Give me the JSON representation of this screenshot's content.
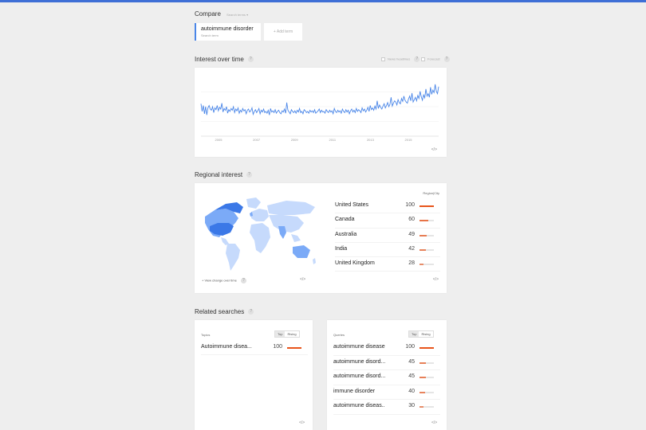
{
  "compare": {
    "title": "Compare",
    "search_terms_label": "Search terms",
    "term": {
      "name": "autoimmune disorder",
      "sub": "Search term"
    },
    "add_term_label": "+ Add term"
  },
  "interest": {
    "title": "Interest over time",
    "news_headlines_label": "News headlines",
    "forecast_label": "Forecast",
    "embed_label": "</>",
    "x_ticks": [
      "2005",
      "2007",
      "2009",
      "2011",
      "2013",
      "2015"
    ]
  },
  "chart_data": {
    "type": "line",
    "title": "",
    "xlabel": "",
    "ylabel": "",
    "ylim": [
      0,
      100
    ],
    "x_ticks": [
      "2005",
      "2007",
      "2009",
      "2011",
      "2013",
      "2015"
    ],
    "series": [
      {
        "color": "#4a86e8",
        "values": [
          55,
          42,
          52,
          38,
          50,
          36,
          48,
          52,
          46,
          44,
          50,
          40,
          48,
          45,
          52,
          43,
          49,
          46,
          56,
          41,
          47,
          44,
          50,
          39,
          45,
          42,
          47,
          44,
          50,
          40,
          46,
          43,
          48,
          39,
          44,
          41,
          47,
          43,
          45,
          38,
          44,
          46,
          41,
          43,
          48,
          37,
          42,
          45,
          40,
          43,
          47,
          38,
          44,
          41,
          46,
          40,
          42,
          39,
          44,
          36,
          47,
          41,
          43,
          40,
          45,
          39,
          42,
          44,
          40,
          38,
          43,
          41,
          46,
          39,
          57,
          44,
          41,
          38,
          45,
          42,
          40,
          43,
          39,
          44,
          41,
          47,
          40,
          42,
          38,
          45,
          43,
          40,
          42,
          39,
          44,
          41,
          43,
          40,
          45,
          39,
          41,
          43,
          46,
          40,
          44,
          41,
          42,
          39,
          45,
          42,
          40,
          44,
          41,
          43,
          38,
          47,
          42,
          40,
          44,
          41,
          43,
          39,
          46,
          42,
          40,
          45,
          41,
          44,
          38,
          43,
          46,
          41,
          44,
          40,
          47,
          42,
          45,
          43,
          40,
          48,
          43,
          46,
          41,
          44,
          49,
          42,
          52,
          45,
          48,
          44,
          51,
          46,
          60,
          47,
          53,
          49,
          46,
          51,
          55,
          48,
          52,
          57,
          50,
          54,
          66,
          51,
          56,
          60,
          58,
          53,
          62,
          57,
          55,
          64,
          59,
          68,
          61,
          58,
          56,
          63,
          68,
          60,
          73,
          58,
          62,
          66,
          60,
          69,
          64,
          76,
          67,
          61,
          70,
          65,
          80,
          68,
          72,
          66,
          83,
          71,
          78,
          74,
          88,
          76,
          72,
          84
        ]
      }
    ]
  },
  "regional": {
    "title": "Regional interest",
    "toggle": {
      "region": "Region",
      "sep": "|",
      "city": "City"
    },
    "view_change_label": "View change over time",
    "embed_label": "</>",
    "rows": [
      {
        "label": "United States",
        "value": "100",
        "pct": 100
      },
      {
        "label": "Canada",
        "value": "60",
        "pct": 60
      },
      {
        "label": "Australia",
        "value": "49",
        "pct": 49
      },
      {
        "label": "India",
        "value": "42",
        "pct": 42
      },
      {
        "label": "United Kingdom",
        "value": "28",
        "pct": 28
      }
    ]
  },
  "related": {
    "title": "Related searches",
    "topics": {
      "label": "Topics",
      "top": "Top",
      "rising": "Rising",
      "rows": [
        {
          "label": "Autoimmune disea...",
          "value": "100",
          "pct": 100
        }
      ]
    },
    "queries": {
      "label": "Queries",
      "top": "Top",
      "rising": "Rising",
      "rows": [
        {
          "label": "autoimmune disease",
          "value": "100",
          "pct": 100
        },
        {
          "label": "autoimmune disord...",
          "value": "45",
          "pct": 45
        },
        {
          "label": "autoimmune disord...",
          "value": "45",
          "pct": 45
        },
        {
          "label": "immune disorder",
          "value": "40",
          "pct": 40
        },
        {
          "label": "autoimmune diseas..",
          "value": "30",
          "pct": 30
        }
      ]
    },
    "embed_label": "</>"
  },
  "colors": {
    "accent": "#3f6fd6",
    "line": "#4a86e8",
    "bar": "#e8541b",
    "map_dark": "#3b78e7",
    "map_mid": "#7baaf7",
    "map_light": "#c6dafc"
  }
}
